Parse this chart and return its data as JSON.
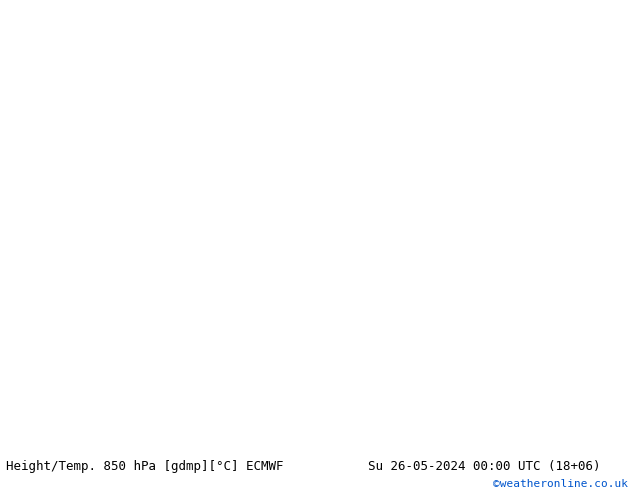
{
  "title_left": "Height/Temp. 850 hPa [gdmp][°C] ECMWF",
  "title_right": "Su 26-05-2024 00:00 UTC (18+06)",
  "watermark": "©weatheronline.co.uk",
  "bg_ocean": "#c8cfd8",
  "bg_land": "#e0e0e0",
  "aus_fill": "#c0f0a0",
  "land_fill": "#d8d8d8",
  "coast_color": "#808080",
  "height_contour_color": "#000000",
  "temp_pos_color": "#e07000",
  "temp_neg_yg_color": "#90c020",
  "temp_neg_teal_color": "#00aaaa",
  "temp_neg_blue_color": "#0044cc",
  "text_color_left": "#000000",
  "text_color_right": "#000000",
  "text_color_watermark": "#0055cc",
  "font_size_title": 9,
  "font_size_watermark": 8,
  "extent": [
    80,
    200,
    -65,
    10
  ],
  "figsize": [
    6.34,
    4.9
  ],
  "dpi": 100
}
